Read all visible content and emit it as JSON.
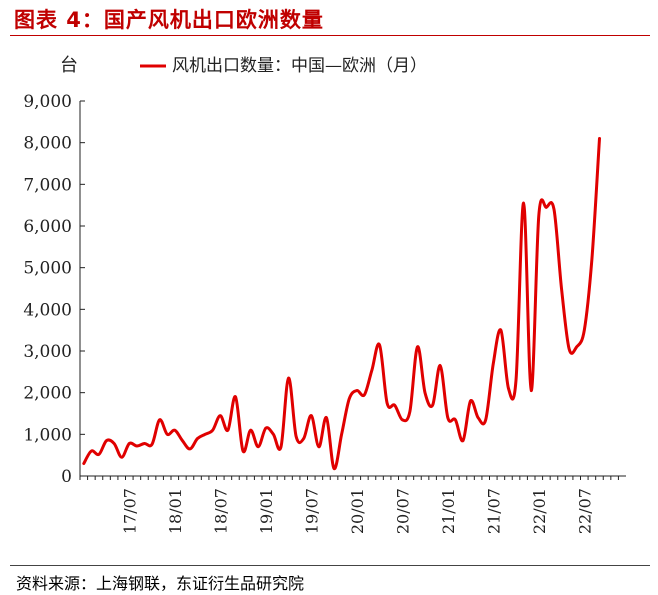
{
  "figure_title": "图表 4：国产风机出口欧洲数量",
  "source": "资料来源：上海钢联，东证衍生品研究院",
  "colors": {
    "title": "#c00000",
    "series": "#e00000",
    "axis": "#222222"
  },
  "chart_data": {
    "type": "line",
    "unit_label": "台",
    "ylim": [
      0,
      9000
    ],
    "yticks": [
      0,
      1000,
      2000,
      3000,
      4000,
      5000,
      6000,
      7000,
      8000,
      9000
    ],
    "ytick_labels": [
      "0",
      "1,000",
      "2,000",
      "3,000",
      "4,000",
      "5,000",
      "6,000",
      "7,000",
      "8,000",
      "9,000"
    ],
    "xtick_labels": [
      "17/07",
      "18/01",
      "18/07",
      "19/01",
      "19/07",
      "20/01",
      "20/07",
      "21/01",
      "21/07",
      "22/01",
      "22/07"
    ],
    "grid": false,
    "legend": "top",
    "series": [
      {
        "name": "风机出口数量：中国—欧洲（月）",
        "x": [
          "17/01",
          "17/02",
          "17/03",
          "17/04",
          "17/05",
          "17/06",
          "17/07",
          "17/08",
          "17/09",
          "17/10",
          "17/11",
          "17/12",
          "18/01",
          "18/02",
          "18/03",
          "18/04",
          "18/05",
          "18/06",
          "18/07",
          "18/08",
          "18/09",
          "18/10",
          "18/11",
          "18/12",
          "19/01",
          "19/02",
          "19/03",
          "19/04",
          "19/05",
          "19/06",
          "19/07",
          "19/08",
          "19/09",
          "19/10",
          "19/11",
          "19/12",
          "20/01",
          "20/02",
          "20/03",
          "20/04",
          "20/05",
          "20/06",
          "20/07",
          "20/08",
          "20/09",
          "20/10",
          "20/11",
          "20/12",
          "21/01",
          "21/02",
          "21/03",
          "21/04",
          "21/05",
          "21/06",
          "21/07",
          "21/08",
          "21/09",
          "21/10",
          "21/11",
          "21/12",
          "22/01",
          "22/02",
          "22/03",
          "22/04",
          "22/05",
          "22/06",
          "22/07",
          "22/08",
          "22/09",
          "22/10",
          "22/11",
          "22/12"
        ],
        "values": [
          300,
          600,
          520,
          850,
          780,
          450,
          780,
          720,
          780,
          760,
          1350,
          1000,
          1100,
          850,
          650,
          900,
          1000,
          1100,
          1450,
          1100,
          1900,
          600,
          1100,
          700,
          1150,
          1000,
          700,
          2350,
          950,
          900,
          1450,
          700,
          1400,
          180,
          1000,
          1850,
          2050,
          1950,
          2550,
          3150,
          1750,
          1700,
          1350,
          1550,
          3100,
          2000,
          1700,
          2650,
          1400,
          1350,
          850,
          1800,
          1400,
          1350,
          2700,
          3500,
          2100,
          2300,
          6550,
          2050,
          6250,
          6450,
          6400,
          4500,
          3050,
          3100,
          3500,
          5200,
          8100,
          null,
          null,
          null
        ]
      }
    ]
  }
}
